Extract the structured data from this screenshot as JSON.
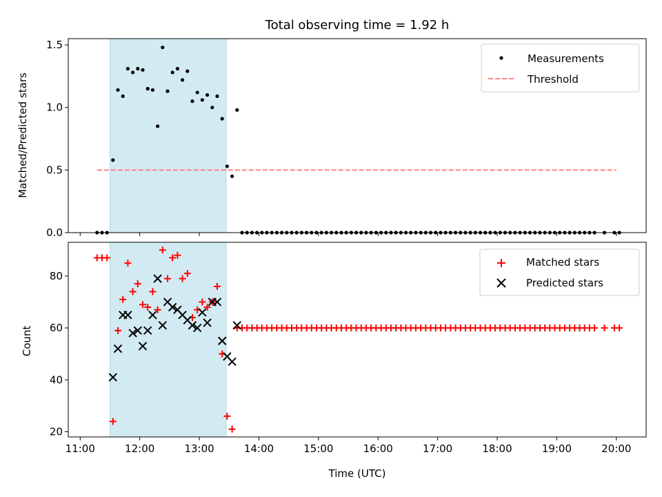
{
  "chart_data": [
    {
      "type": "scatter",
      "title": "Total observing time = 1.92 h",
      "xlabel": "",
      "ylabel": "Matched/Predicted stars",
      "xlim": [
        "10:48",
        "20:30"
      ],
      "ylim": [
        0,
        1.55
      ],
      "yticks": [
        "0.0",
        "0.5",
        "1.0",
        "1.5"
      ],
      "shaded_span": {
        "start": "11:30",
        "end": "13:27",
        "color": "#add8e6"
      },
      "legend_position": "upper right",
      "series": [
        {
          "name": "Measurements",
          "marker": "dot",
          "color": "#000000",
          "points": [
            [
              "11:17",
              0
            ],
            [
              "11:22",
              0
            ],
            [
              "11:27",
              0
            ],
            [
              "11:33",
              0.58
            ],
            [
              "11:38",
              1.14
            ],
            [
              "11:43",
              1.09
            ],
            [
              "11:48",
              1.31
            ],
            [
              "11:53",
              1.28
            ],
            [
              "11:58",
              1.31
            ],
            [
              "12:03",
              1.3
            ],
            [
              "12:08",
              1.15
            ],
            [
              "12:13",
              1.14
            ],
            [
              "12:18",
              0.85
            ],
            [
              "12:23",
              1.48
            ],
            [
              "12:28",
              1.13
            ],
            [
              "12:33",
              1.28
            ],
            [
              "12:38",
              1.31
            ],
            [
              "12:43",
              1.22
            ],
            [
              "12:48",
              1.29
            ],
            [
              "12:53",
              1.05
            ],
            [
              "12:58",
              1.12
            ],
            [
              "13:03",
              1.06
            ],
            [
              "13:08",
              1.1
            ],
            [
              "13:13",
              1.0
            ],
            [
              "13:18",
              1.09
            ],
            [
              "13:23",
              0.91
            ],
            [
              "13:28",
              0.53
            ],
            [
              "13:33",
              0.45
            ],
            [
              "13:38",
              0.98
            ],
            [
              "13:43",
              0
            ],
            [
              "13:48",
              0
            ],
            [
              "13:53",
              0
            ],
            [
              "13:58",
              0
            ],
            [
              "14:03",
              0
            ],
            [
              "14:08",
              0
            ],
            [
              "14:13",
              0
            ],
            [
              "14:18",
              0
            ],
            [
              "14:23",
              0
            ],
            [
              "14:28",
              0
            ],
            [
              "14:33",
              0
            ],
            [
              "14:38",
              0
            ],
            [
              "14:43",
              0
            ],
            [
              "14:48",
              0
            ],
            [
              "14:53",
              0
            ],
            [
              "14:58",
              0
            ],
            [
              "15:03",
              0
            ],
            [
              "15:08",
              0
            ],
            [
              "15:13",
              0
            ],
            [
              "15:18",
              0
            ],
            [
              "15:23",
              0
            ],
            [
              "15:28",
              0
            ],
            [
              "15:33",
              0
            ],
            [
              "15:38",
              0
            ],
            [
              "15:43",
              0
            ],
            [
              "15:48",
              0
            ],
            [
              "15:53",
              0
            ],
            [
              "15:58",
              0
            ],
            [
              "16:03",
              0
            ],
            [
              "16:08",
              0
            ],
            [
              "16:13",
              0
            ],
            [
              "16:18",
              0
            ],
            [
              "16:23",
              0
            ],
            [
              "16:28",
              0
            ],
            [
              "16:33",
              0
            ],
            [
              "16:38",
              0
            ],
            [
              "16:43",
              0
            ],
            [
              "16:48",
              0
            ],
            [
              "16:53",
              0
            ],
            [
              "16:58",
              0
            ],
            [
              "17:03",
              0
            ],
            [
              "17:08",
              0
            ],
            [
              "17:13",
              0
            ],
            [
              "17:18",
              0
            ],
            [
              "17:23",
              0
            ],
            [
              "17:28",
              0
            ],
            [
              "17:33",
              0
            ],
            [
              "17:38",
              0
            ],
            [
              "17:43",
              0
            ],
            [
              "17:48",
              0
            ],
            [
              "17:53",
              0
            ],
            [
              "17:58",
              0
            ],
            [
              "18:03",
              0
            ],
            [
              "18:08",
              0
            ],
            [
              "18:13",
              0
            ],
            [
              "18:18",
              0
            ],
            [
              "18:23",
              0
            ],
            [
              "18:28",
              0
            ],
            [
              "18:33",
              0
            ],
            [
              "18:38",
              0
            ],
            [
              "18:43",
              0
            ],
            [
              "18:48",
              0
            ],
            [
              "18:53",
              0
            ],
            [
              "18:58",
              0
            ],
            [
              "19:03",
              0
            ],
            [
              "19:08",
              0
            ],
            [
              "19:13",
              0
            ],
            [
              "19:18",
              0
            ],
            [
              "19:23",
              0
            ],
            [
              "19:28",
              0
            ],
            [
              "19:33",
              0
            ],
            [
              "19:38",
              0
            ],
            [
              "19:48",
              0
            ],
            [
              "19:58",
              0
            ],
            [
              "20:03",
              0
            ]
          ]
        },
        {
          "name": "Threshold",
          "line_style": "dashed",
          "color": "#ff7f7f",
          "points": [
            [
              "11:17",
              0.5
            ],
            [
              "20:00",
              0.5
            ]
          ]
        }
      ]
    },
    {
      "type": "scatter",
      "title": "",
      "xlabel": "Time (UTC)",
      "ylabel": "Count",
      "xlim": [
        "10:48",
        "20:30"
      ],
      "ylim": [
        18,
        93
      ],
      "yticks": [
        "20",
        "40",
        "60",
        "80"
      ],
      "xticks": [
        "11:00",
        "12:00",
        "13:00",
        "14:00",
        "15:00",
        "16:00",
        "17:00",
        "18:00",
        "19:00",
        "20:00"
      ],
      "shaded_span": {
        "start": "11:30",
        "end": "13:27",
        "color": "#add8e6"
      },
      "legend_position": "upper right",
      "series": [
        {
          "name": "Matched stars",
          "marker": "plus",
          "color": "#ff0000",
          "points": [
            [
              "11:17",
              87
            ],
            [
              "11:22",
              87
            ],
            [
              "11:27",
              87
            ],
            [
              "11:33",
              24
            ],
            [
              "11:38",
              59
            ],
            [
              "11:43",
              71
            ],
            [
              "11:48",
              85
            ],
            [
              "11:53",
              74
            ],
            [
              "11:58",
              77
            ],
            [
              "12:03",
              69
            ],
            [
              "12:08",
              68
            ],
            [
              "12:13",
              74
            ],
            [
              "12:18",
              67
            ],
            [
              "12:23",
              90
            ],
            [
              "12:28",
              79
            ],
            [
              "12:33",
              87
            ],
            [
              "12:38",
              88
            ],
            [
              "12:43",
              79
            ],
            [
              "12:48",
              81
            ],
            [
              "12:53",
              64
            ],
            [
              "12:58",
              67
            ],
            [
              "13:03",
              70
            ],
            [
              "13:08",
              68
            ],
            [
              "13:13",
              70
            ],
            [
              "13:18",
              76
            ],
            [
              "13:23",
              50
            ],
            [
              "13:28",
              26
            ],
            [
              "13:33",
              21
            ],
            [
              "13:38",
              60
            ],
            [
              "13:43",
              60
            ],
            [
              "13:48",
              60
            ],
            [
              "13:53",
              60
            ],
            [
              "13:58",
              60
            ],
            [
              "14:03",
              60
            ],
            [
              "14:08",
              60
            ],
            [
              "14:13",
              60
            ],
            [
              "14:18",
              60
            ],
            [
              "14:23",
              60
            ],
            [
              "14:28",
              60
            ],
            [
              "14:33",
              60
            ],
            [
              "14:38",
              60
            ],
            [
              "14:43",
              60
            ],
            [
              "14:48",
              60
            ],
            [
              "14:53",
              60
            ],
            [
              "14:58",
              60
            ],
            [
              "15:03",
              60
            ],
            [
              "15:08",
              60
            ],
            [
              "15:13",
              60
            ],
            [
              "15:18",
              60
            ],
            [
              "15:23",
              60
            ],
            [
              "15:28",
              60
            ],
            [
              "15:33",
              60
            ],
            [
              "15:38",
              60
            ],
            [
              "15:43",
              60
            ],
            [
              "15:48",
              60
            ],
            [
              "15:53",
              60
            ],
            [
              "15:58",
              60
            ],
            [
              "16:03",
              60
            ],
            [
              "16:08",
              60
            ],
            [
              "16:13",
              60
            ],
            [
              "16:18",
              60
            ],
            [
              "16:23",
              60
            ],
            [
              "16:28",
              60
            ],
            [
              "16:33",
              60
            ],
            [
              "16:38",
              60
            ],
            [
              "16:43",
              60
            ],
            [
              "16:48",
              60
            ],
            [
              "16:53",
              60
            ],
            [
              "16:58",
              60
            ],
            [
              "17:03",
              60
            ],
            [
              "17:08",
              60
            ],
            [
              "17:13",
              60
            ],
            [
              "17:18",
              60
            ],
            [
              "17:23",
              60
            ],
            [
              "17:28",
              60
            ],
            [
              "17:33",
              60
            ],
            [
              "17:38",
              60
            ],
            [
              "17:43",
              60
            ],
            [
              "17:48",
              60
            ],
            [
              "17:53",
              60
            ],
            [
              "17:58",
              60
            ],
            [
              "18:03",
              60
            ],
            [
              "18:08",
              60
            ],
            [
              "18:13",
              60
            ],
            [
              "18:18",
              60
            ],
            [
              "18:23",
              60
            ],
            [
              "18:28",
              60
            ],
            [
              "18:33",
              60
            ],
            [
              "18:38",
              60
            ],
            [
              "18:43",
              60
            ],
            [
              "18:48",
              60
            ],
            [
              "18:53",
              60
            ],
            [
              "18:58",
              60
            ],
            [
              "19:03",
              60
            ],
            [
              "19:08",
              60
            ],
            [
              "19:13",
              60
            ],
            [
              "19:18",
              60
            ],
            [
              "19:23",
              60
            ],
            [
              "19:28",
              60
            ],
            [
              "19:33",
              60
            ],
            [
              "19:38",
              60
            ],
            [
              "19:48",
              60
            ],
            [
              "19:58",
              60
            ],
            [
              "20:03",
              60
            ]
          ]
        },
        {
          "name": "Predicted stars",
          "marker": "x",
          "color": "#000000",
          "points": [
            [
              "11:33",
              41
            ],
            [
              "11:38",
              52
            ],
            [
              "11:43",
              65
            ],
            [
              "11:48",
              65
            ],
            [
              "11:53",
              58
            ],
            [
              "11:58",
              59
            ],
            [
              "12:03",
              53
            ],
            [
              "12:08",
              59
            ],
            [
              "12:13",
              65
            ],
            [
              "12:18",
              79
            ],
            [
              "12:23",
              61
            ],
            [
              "12:28",
              70
            ],
            [
              "12:33",
              68
            ],
            [
              "12:38",
              67
            ],
            [
              "12:43",
              65
            ],
            [
              "12:48",
              63
            ],
            [
              "12:53",
              61
            ],
            [
              "12:58",
              60
            ],
            [
              "13:03",
              66
            ],
            [
              "13:08",
              62
            ],
            [
              "13:13",
              70
            ],
            [
              "13:18",
              70
            ],
            [
              "13:23",
              55
            ],
            [
              "13:28",
              49
            ],
            [
              "13:33",
              47
            ],
            [
              "13:38",
              61
            ]
          ]
        }
      ]
    }
  ]
}
